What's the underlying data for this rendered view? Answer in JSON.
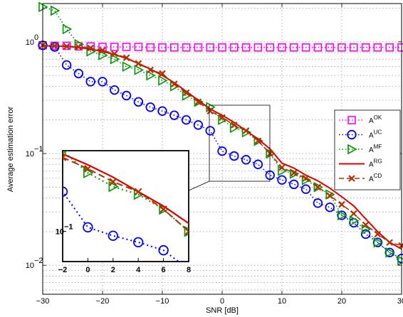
{
  "chart_data": {
    "type": "line",
    "xlabel": "SNR [dB]",
    "ylabel": "Average estimation error",
    "xlim": [
      -30,
      30
    ],
    "ylim": [
      0.0055,
      2.2
    ],
    "yscale": "log",
    "grid": true,
    "legend_position": "right",
    "x_ticks": [
      -30,
      -20,
      -10,
      0,
      10,
      20,
      30
    ],
    "x_tick_labels": [
      "−30",
      "−20",
      "−10",
      "0",
      "10",
      "20",
      "30"
    ],
    "y_ticks": [
      1,
      0.1,
      0.01
    ],
    "y_tick_labels": [
      {
        "base": "10",
        "exp": "0"
      },
      {
        "base": "10",
        "exp": "−1"
      },
      {
        "base": "10",
        "exp": "−2"
      }
    ],
    "series": [
      {
        "name_base": "A",
        "name_sup": "OK",
        "color": "#ff00ff",
        "line": "dotted",
        "marker": "square",
        "x": [
          -30,
          -28,
          -26,
          -24,
          -22,
          -20,
          -18,
          -16,
          -14,
          -12,
          -10,
          -8,
          -6,
          -4,
          -2,
          0,
          2,
          4,
          6,
          8,
          10,
          12,
          14,
          16,
          18,
          20,
          22,
          24,
          26,
          28,
          30
        ],
        "y": [
          0.93,
          0.92,
          0.92,
          0.91,
          0.91,
          0.9,
          0.9,
          0.9,
          0.9,
          0.89,
          0.89,
          0.89,
          0.89,
          0.89,
          0.89,
          0.89,
          0.89,
          0.89,
          0.89,
          0.89,
          0.89,
          0.89,
          0.89,
          0.89,
          0.89,
          0.89,
          0.89,
          0.89,
          0.89,
          0.89,
          0.89
        ]
      },
      {
        "name_base": "A",
        "name_sup": "UC",
        "color": "#0000ff",
        "line": "dotted",
        "marker": "circle",
        "x": [
          -30,
          -28,
          -26,
          -24,
          -22,
          -20,
          -18,
          -16,
          -14,
          -12,
          -10,
          -8,
          -6,
          -4,
          -2,
          0,
          2,
          4,
          6,
          8,
          10,
          12,
          14,
          16,
          18,
          20,
          22,
          24,
          26,
          28,
          30
        ],
        "y": [
          0.93,
          0.9,
          0.62,
          0.52,
          0.44,
          0.44,
          0.37,
          0.33,
          0.29,
          0.26,
          0.24,
          0.22,
          0.2,
          0.18,
          0.16,
          0.105,
          0.095,
          0.088,
          0.08,
          0.064,
          0.058,
          0.053,
          0.048,
          0.036,
          0.033,
          0.028,
          0.024,
          0.019,
          0.016,
          0.013,
          0.0115
        ]
      },
      {
        "name_base": "A",
        "name_sup": "MF",
        "color": "#009900",
        "line": "dotted",
        "marker": "triangle-right",
        "x": [
          -30,
          -28,
          -26,
          -24,
          -22,
          -20,
          -18,
          -16,
          -14,
          -12,
          -10,
          -8,
          -6,
          -4,
          -2,
          0,
          2,
          4,
          6,
          8,
          10,
          12,
          14,
          16,
          18,
          20,
          22,
          24,
          26,
          28,
          30
        ],
        "y": [
          2.05,
          1.9,
          1.3,
          0.95,
          0.82,
          0.76,
          0.7,
          0.6,
          0.56,
          0.5,
          0.45,
          0.4,
          0.33,
          0.29,
          0.26,
          0.2,
          0.17,
          0.155,
          0.13,
          0.1,
          0.07,
          0.066,
          0.058,
          0.05,
          0.043,
          0.028,
          0.025,
          0.021,
          0.016,
          0.013,
          0.011
        ]
      },
      {
        "name_base": "A",
        "name_sup": "RG",
        "color": "#dd0000",
        "line": "solid",
        "marker": "none",
        "x": [
          -30,
          -28,
          -26,
          -24,
          -22,
          -20,
          -18,
          -16,
          -14,
          -12,
          -10,
          -8,
          -6,
          -4,
          -2,
          0,
          2,
          4,
          6,
          8,
          10,
          12,
          14,
          16,
          18,
          20,
          22,
          24,
          26,
          28,
          30
        ],
        "y": [
          0.92,
          0.92,
          0.91,
          0.89,
          0.86,
          0.82,
          0.77,
          0.71,
          0.64,
          0.57,
          0.5,
          0.43,
          0.36,
          0.3,
          0.25,
          0.22,
          0.19,
          0.16,
          0.135,
          0.11,
          0.082,
          0.074,
          0.064,
          0.057,
          0.049,
          0.041,
          0.034,
          0.026,
          0.02,
          0.016,
          0.014
        ]
      },
      {
        "name_base": "A",
        "name_sup": "CD",
        "color": "#b03000",
        "line": "dashed",
        "marker": "x",
        "x": [
          -30,
          -28,
          -26,
          -24,
          -22,
          -20,
          -18,
          -16,
          -14,
          -12,
          -10,
          -8,
          -6,
          -4,
          -2,
          0,
          2,
          4,
          6,
          8,
          10,
          12,
          14,
          16,
          18,
          20,
          22,
          24,
          26,
          28,
          30
        ],
        "y": [
          0.93,
          0.92,
          0.91,
          0.9,
          0.88,
          0.84,
          0.78,
          0.72,
          0.64,
          0.56,
          0.52,
          0.42,
          0.35,
          0.29,
          0.24,
          0.21,
          0.18,
          0.16,
          0.13,
          0.1,
          0.075,
          0.067,
          0.06,
          0.05,
          0.042,
          0.035,
          0.029,
          0.023,
          0.019,
          0.016,
          0.015
        ]
      }
    ],
    "inset": {
      "xlim": [
        -2,
        8
      ],
      "ylim": [
        0.07,
        0.26
      ],
      "x_tick_labels": [
        "−2",
        "0",
        "2",
        "4",
        "6",
        "8"
      ],
      "y_tick_label": {
        "base": "10",
        "exp": "−1"
      }
    }
  }
}
